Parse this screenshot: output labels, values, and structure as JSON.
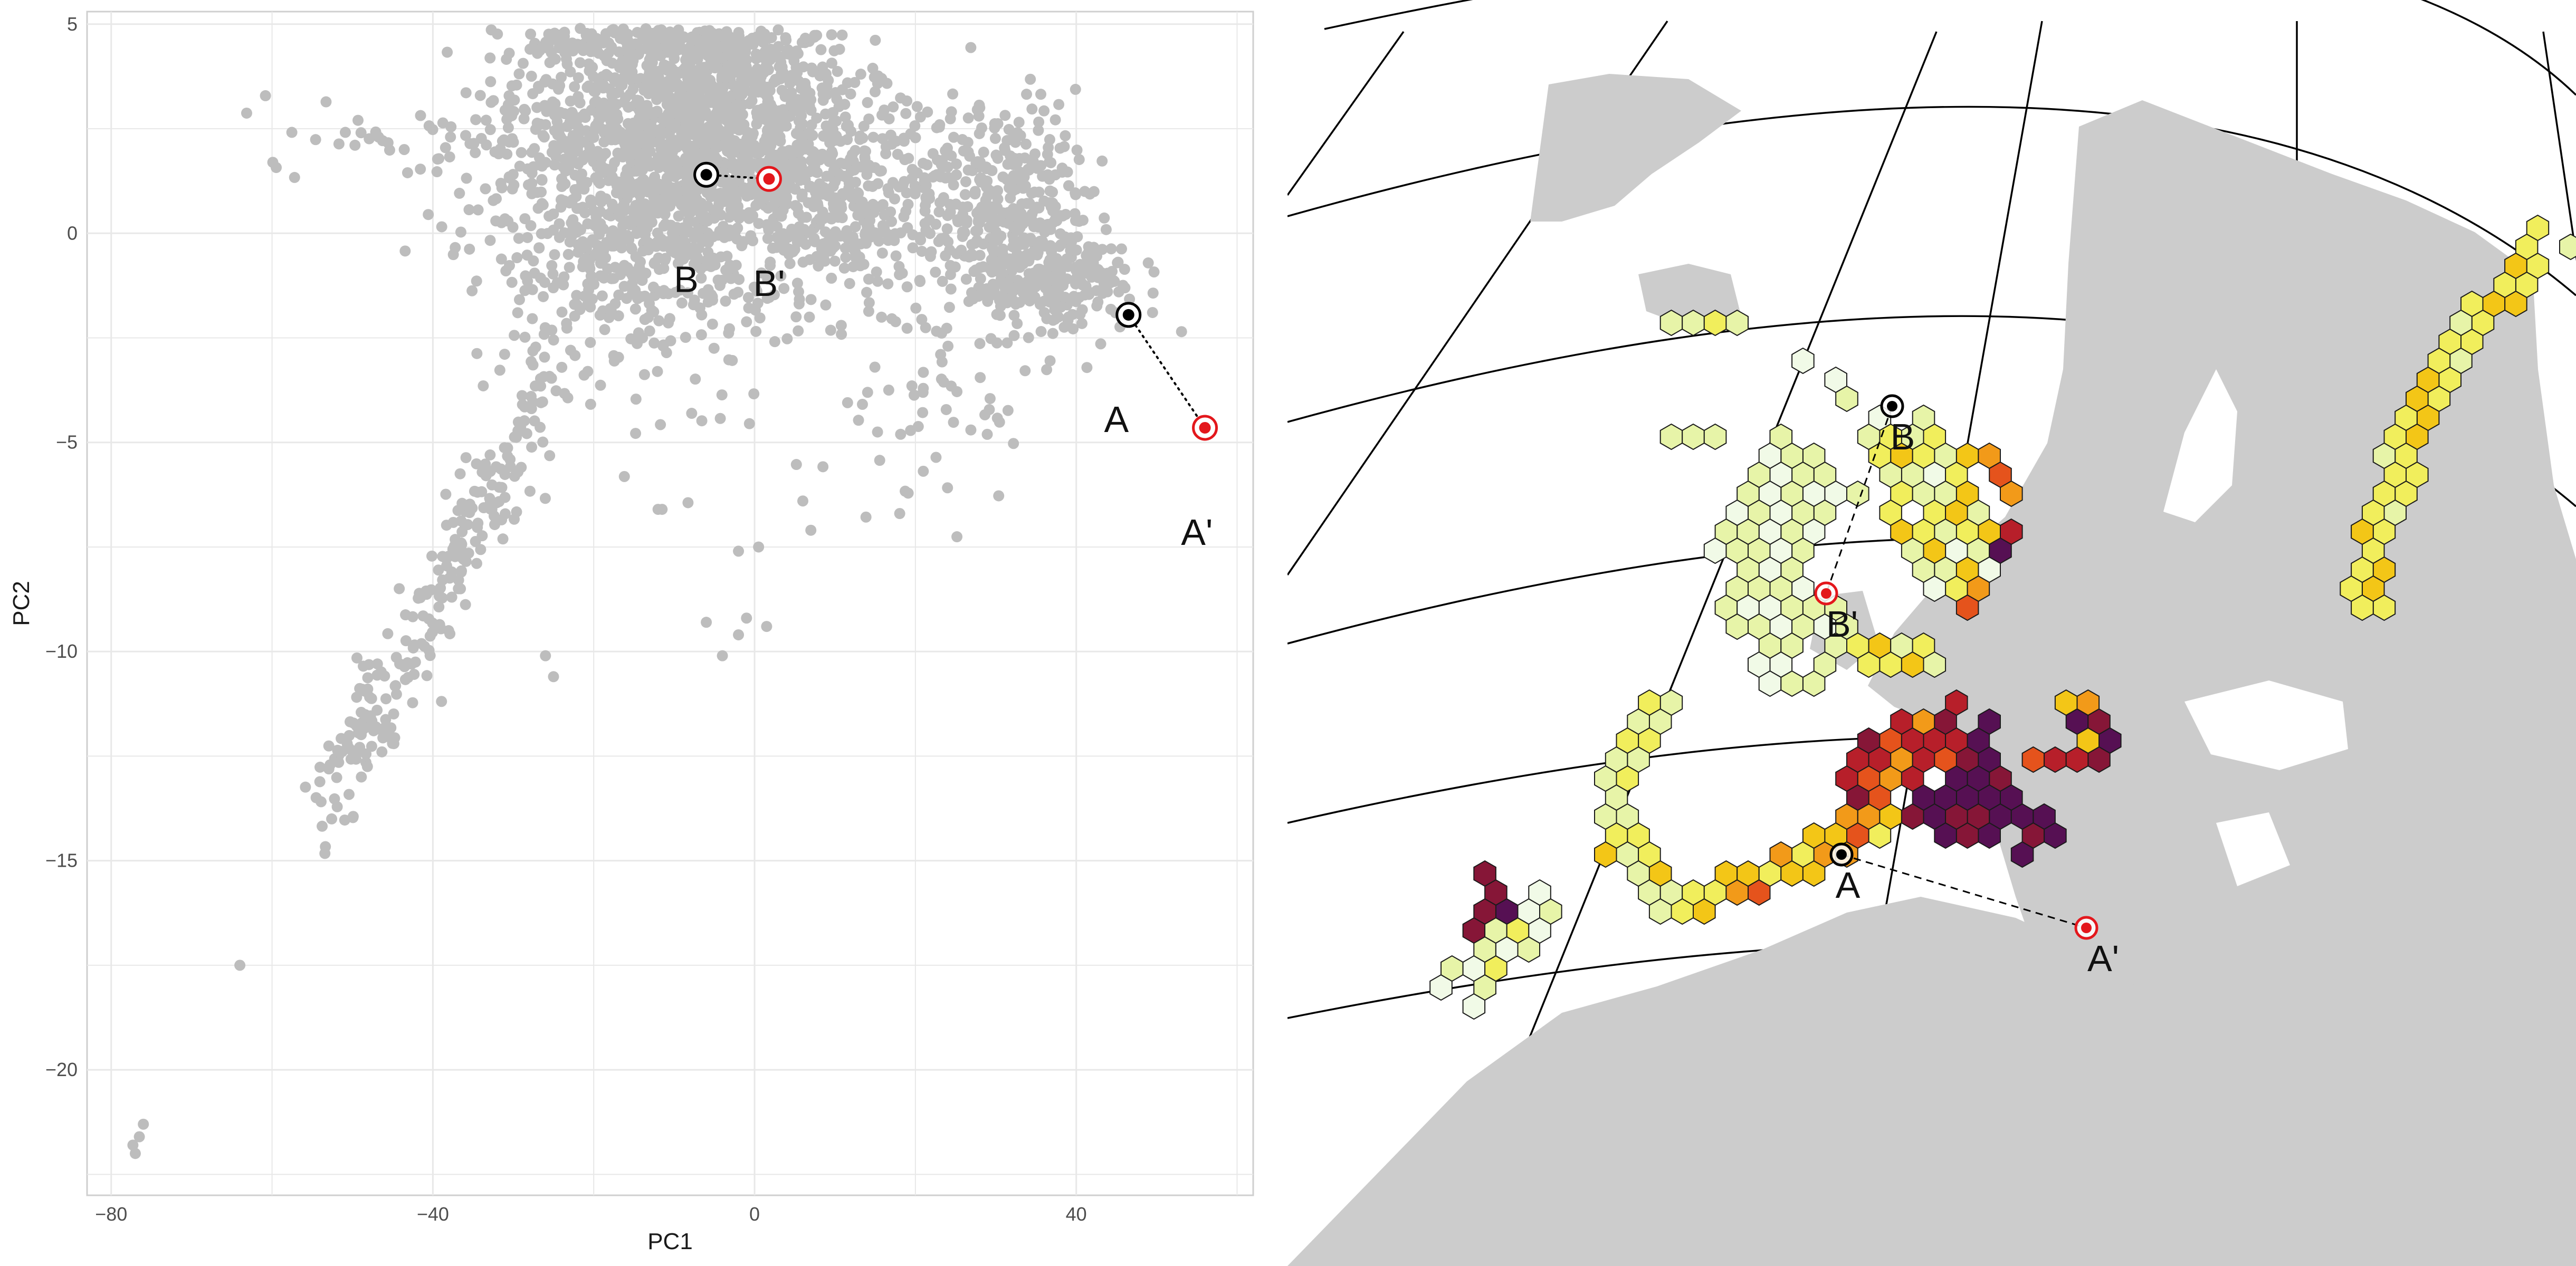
{
  "colors": {
    "points": "#bdbdbd",
    "grid": "#e8e8e8",
    "panel_border": "#cfcfcf",
    "marker_black": "#000000",
    "marker_red": "#e3171c",
    "land": "#cccccc",
    "hex_stroke": "#1a1a1a"
  },
  "chart_data": [
    {
      "type": "scatter",
      "xlabel": "PC1",
      "ylabel": "PC2",
      "xlim": [
        -83,
        62
      ],
      "ylim": [
        -23,
        5.3
      ],
      "x_ticks": [
        -80,
        -40,
        0,
        40
      ],
      "y_ticks": [
        5,
        0,
        -5,
        -10,
        -15,
        -20
      ],
      "x_tick_labels": [
        "−80",
        "−40",
        "0",
        "40"
      ],
      "y_tick_labels": [
        "5",
        "0",
        "−5",
        "−10",
        "−15",
        "−20"
      ],
      "grid": true,
      "point_clusters": [
        {
          "cx": -14,
          "cy": 1.6,
          "sx": 9,
          "sy": 2.3,
          "n": 1300
        },
        {
          "cx": -3,
          "cy": 3.0,
          "sx": 7,
          "sy": 1.3,
          "n": 650
        },
        {
          "cx": 10,
          "cy": 0.9,
          "sx": 7,
          "sy": 1.3,
          "n": 420
        },
        {
          "cx": 31,
          "cy": 0.4,
          "sx": 5,
          "sy": 1.4,
          "n": 380
        },
        {
          "cx": 38,
          "cy": -1.1,
          "sx": 5,
          "sy": 0.7,
          "n": 200
        },
        {
          "cx": -40,
          "cy": 2.3,
          "sx": 10,
          "sy": 0.6,
          "n": 60
        },
        {
          "cx": 20,
          "cy": -4.5,
          "sx": 7,
          "sy": 1.3,
          "n": 45
        }
      ],
      "trail": {
        "x0": -54,
        "y0": -14.1,
        "x1": -25,
        "y1": -3.5,
        "spread": 1.4,
        "n": 260
      },
      "scattered_points": [
        [
          -64,
          -17.5
        ],
        [
          -76,
          -21.3
        ],
        [
          -76.5,
          -21.6
        ],
        [
          -77,
          -22.0
        ],
        [
          -77.3,
          -21.8
        ],
        [
          -2,
          -9.6
        ],
        [
          1.5,
          -9.4
        ],
        [
          -6,
          -9.3
        ],
        [
          -4,
          -10.1
        ],
        [
          -1,
          -9.2
        ],
        [
          -26,
          -10.1
        ],
        [
          -25,
          -10.6
        ],
        [
          -12,
          -6.6
        ],
        [
          -11.5,
          -6.6
        ],
        [
          7,
          -7.1
        ],
        [
          0.5,
          -7.5
        ],
        [
          6,
          -6.4
        ],
        [
          -2,
          -7.6
        ]
      ],
      "markers": [
        {
          "label": "A",
          "x": 46.5,
          "y": -1.95,
          "kind": "observed",
          "label_dx": -1.5,
          "label_dy": -2.8
        },
        {
          "label": "A'",
          "x": 56.0,
          "y": -4.65,
          "kind": "predicted",
          "label_dx": -1.0,
          "label_dy": -2.8
        },
        {
          "label": "B",
          "x": -6.0,
          "y": 1.4,
          "kind": "observed",
          "label_dx": -2.5,
          "label_dy": -2.8
        },
        {
          "label": "B'",
          "x": 1.8,
          "y": 1.3,
          "kind": "predicted",
          "label_dx": 0.0,
          "label_dy": -2.8
        }
      ],
      "segments": [
        [
          "A",
          "A'"
        ],
        [
          "B",
          "B'"
        ]
      ]
    },
    {
      "type": "map",
      "projection": "conic",
      "hex_palette": [
        "#f1fae7",
        "#e7f4a8",
        "#f1ee5c",
        "#f3c617",
        "#f29a19",
        "#e5531c",
        "#b71f2a",
        "#861637",
        "#561053"
      ],
      "hex_regions": [
        {
          "region": "norway_coast",
          "path": [
            [
              2400,
              455
            ],
            [
              2320,
              530
            ],
            [
              2240,
              640
            ],
            [
              2160,
              760
            ],
            [
              2120,
              860
            ],
            [
              2080,
              960
            ],
            [
              2050,
              1060
            ],
            [
              2040,
              1140
            ]
          ],
          "width": 2,
          "levels": [
            1,
            2,
            2,
            2,
            3,
            3,
            2,
            2,
            2
          ]
        },
        {
          "region": "finnmark",
          "path": [
            [
              2450,
              470
            ],
            [
              2520,
              455
            ],
            [
              2600,
              450
            ],
            [
              2660,
              460
            ]
          ],
          "width": 1,
          "levels": [
            1,
            1,
            2,
            5
          ]
        },
        {
          "region": "iceland",
          "path": [
            [
              735,
              600
            ],
            [
              790,
              620
            ],
            [
              850,
              610
            ]
          ],
          "width": 1,
          "levels": [
            1,
            1,
            2
          ]
        },
        {
          "region": "faroe",
          "path": [
            [
              745,
              845
            ],
            [
              790,
              845
            ]
          ],
          "width": 1,
          "levels": [
            1,
            1
          ]
        },
        {
          "region": "greenland_sea",
          "path": [
            [
              990,
              700
            ],
            [
              1080,
              760
            ],
            [
              1140,
              800
            ]
          ],
          "width": 1,
          "levels": [
            0,
            0,
            1
          ]
        },
        {
          "region": "north_sea_west",
          "path": [
            [
              1000,
              880
            ],
            [
              930,
              990
            ],
            [
              880,
              1100
            ],
            [
              920,
              1190
            ],
            [
              1000,
              1250
            ]
          ],
          "width": 5,
          "levels": [
            1,
            0,
            1,
            0,
            1,
            1
          ]
        },
        {
          "region": "north_sea_east",
          "path": [
            [
              1150,
              820
            ],
            [
              1200,
              920
            ],
            [
              1250,
              1020
            ],
            [
              1280,
              1100
            ]
          ],
          "width": 4,
          "levels": [
            1,
            2,
            1,
            0,
            2,
            3
          ]
        },
        {
          "region": "skagerrak",
          "path": [
            [
              1260,
              880
            ],
            [
              1310,
              930
            ],
            [
              1330,
              990
            ],
            [
              1310,
              1060
            ],
            [
              1270,
              1120
            ]
          ],
          "width": 3,
          "levels": [
            3,
            4,
            5,
            4,
            6,
            8
          ]
        },
        {
          "region": "biscay_north",
          "path": [
            [
              1040,
              1170
            ],
            [
              1100,
              1240
            ],
            [
              1170,
              1260
            ],
            [
              1230,
              1230
            ]
          ],
          "width": 2,
          "levels": [
            1,
            2,
            2,
            3
          ]
        },
        {
          "region": "atlantic_iberia",
          "path": [
            [
              700,
              1340
            ],
            [
              650,
              1430
            ],
            [
              620,
              1530
            ],
            [
              640,
              1620
            ],
            [
              700,
              1680
            ],
            [
              760,
              1720
            ]
          ],
          "width": 2,
          "levels": [
            1,
            1,
            2,
            1,
            2,
            3
          ]
        },
        {
          "region": "med_west",
          "path": [
            [
              800,
              1700
            ],
            [
              900,
              1660
            ],
            [
              1000,
              1620
            ],
            [
              1080,
              1570
            ],
            [
              1140,
              1540
            ]
          ],
          "width": 2,
          "levels": [
            2,
            3,
            3,
            4,
            4,
            5
          ]
        },
        {
          "region": "gulf_of_lion",
          "path": [
            [
              1100,
              1500
            ],
            [
              1140,
              1440
            ],
            [
              1200,
              1400
            ],
            [
              1260,
              1380
            ]
          ],
          "width": 3,
          "levels": [
            6,
            6,
            7,
            5,
            6,
            4
          ]
        },
        {
          "region": "ligurian_tyrrhenian",
          "path": [
            [
              1280,
              1400
            ],
            [
              1330,
              1480
            ],
            [
              1360,
              1560
            ],
            [
              1420,
              1600
            ]
          ],
          "width": 3,
          "levels": [
            8,
            8,
            8,
            7,
            8,
            8
          ]
        },
        {
          "region": "adriatic",
          "path": [
            [
              1470,
              1330
            ],
            [
              1520,
              1390
            ],
            [
              1560,
              1430
            ]
          ],
          "width": 2,
          "levels": [
            3,
            4,
            7,
            8
          ]
        },
        {
          "region": "italy_east",
          "path": [
            [
              1410,
              1450
            ],
            [
              1460,
              1440
            ],
            [
              1520,
              1450
            ]
          ],
          "width": 1,
          "levels": [
            5,
            6,
            6
          ]
        },
        {
          "region": "balearic",
          "path": [
            [
              1200,
              1520
            ],
            [
              1250,
              1560
            ],
            [
              1300,
              1580
            ]
          ],
          "width": 2,
          "levels": [
            8,
            8,
            7,
            8
          ]
        },
        {
          "region": "canary",
          "path": [
            [
              370,
              1650
            ],
            [
              400,
              1720
            ],
            [
              360,
              1770
            ]
          ],
          "width": 1,
          "levels": [
            7,
            7,
            8
          ]
        },
        {
          "region": "morocco_atlantic",
          "path": [
            [
              320,
              1890
            ],
            [
              360,
              1850
            ],
            [
              400,
              1800
            ],
            [
              460,
              1760
            ],
            [
              500,
              1700
            ]
          ],
          "width": 2,
          "levels": [
            0,
            1,
            0,
            1,
            1,
            2
          ]
        }
      ],
      "markers": [
        {
          "label": "A",
          "x": 1050,
          "y": 1620,
          "kind": "observed",
          "label_dx": 12,
          "label_dy": 82
        },
        {
          "label": "A'",
          "x": 1514,
          "y": 1759,
          "kind": "predicted",
          "label_dx": 32,
          "label_dy": 82
        },
        {
          "label": "B",
          "x": 1146,
          "y": 770,
          "kind": "observed",
          "label_dx": 20,
          "label_dy": 82
        },
        {
          "label": "B'",
          "x": 1021,
          "y": 1125,
          "kind": "predicted",
          "label_dx": 30,
          "label_dy": 82
        }
      ],
      "segments": [
        [
          "A",
          "A'"
        ],
        [
          "B",
          "B'"
        ]
      ]
    }
  ]
}
